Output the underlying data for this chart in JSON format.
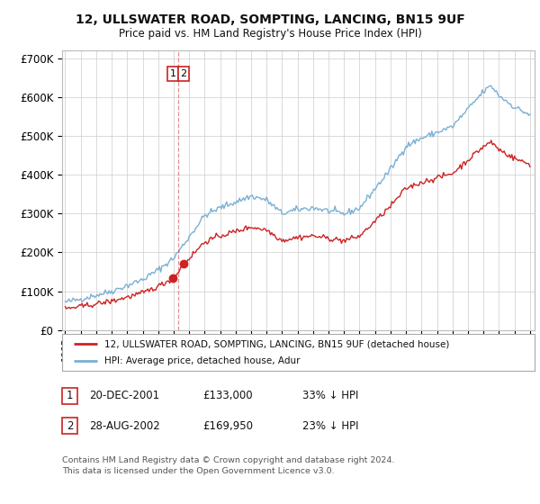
{
  "title": "12, ULLSWATER ROAD, SOMPTING, LANCING, BN15 9UF",
  "subtitle": "Price paid vs. HM Land Registry's House Price Index (HPI)",
  "ylim": [
    0,
    720000
  ],
  "yticks": [
    0,
    100000,
    200000,
    300000,
    400000,
    500000,
    600000,
    700000
  ],
  "ytick_labels": [
    "£0",
    "£100K",
    "£200K",
    "£300K",
    "£400K",
    "£500K",
    "£600K",
    "£700K"
  ],
  "red_line_color": "#cc2222",
  "blue_line_color": "#7ab0d4",
  "transaction1_date": 2001.97,
  "transaction1_price": 133000,
  "transaction2_date": 2002.65,
  "transaction2_price": 169950,
  "vline_x": 2002.3,
  "legend_red_label": "12, ULLSWATER ROAD, SOMPTING, LANCING, BN15 9UF (detached house)",
  "legend_blue_label": "HPI: Average price, detached house, Adur",
  "table_rows": [
    {
      "num": "1",
      "date": "20-DEC-2001",
      "price": "£133,000",
      "hpi": "33% ↓ HPI"
    },
    {
      "num": "2",
      "date": "28-AUG-2002",
      "price": "£169,950",
      "hpi": "23% ↓ HPI"
    }
  ],
  "footnote": "Contains HM Land Registry data © Crown copyright and database right 2024.\nThis data is licensed under the Open Government Licence v3.0.",
  "background_color": "#ffffff",
  "grid_color": "#cccccc"
}
